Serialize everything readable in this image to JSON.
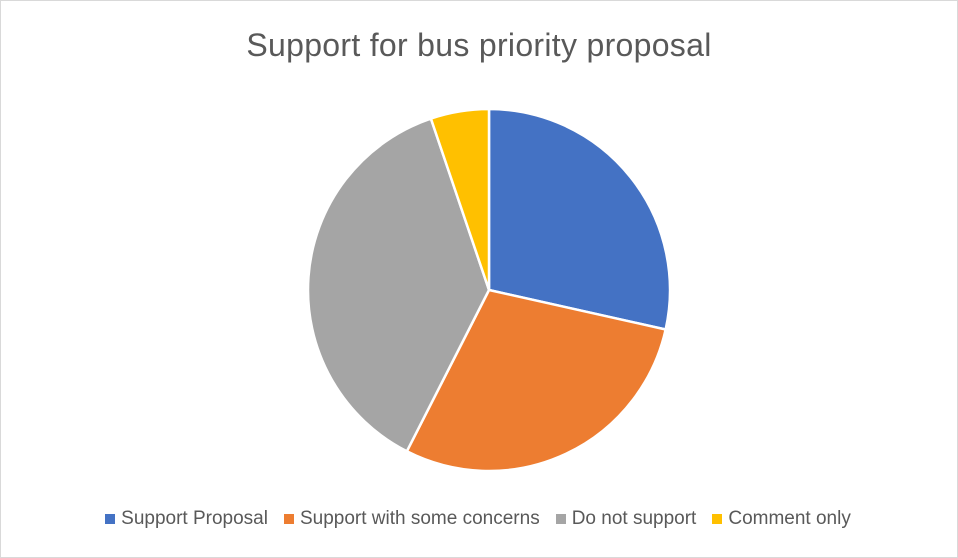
{
  "chart_data": {
    "type": "pie",
    "title": "Support for bus priority proposal",
    "categories": [
      "Support Proposal",
      "Support with some concerns",
      "Do not support",
      "Comment only"
    ],
    "values": [
      28.5,
      29.0,
      37.3,
      5.2
    ],
    "colors": [
      "#4472C4",
      "#ED7D31",
      "#A5A5A5",
      "#FFC000"
    ],
    "start_angle_deg": 0,
    "direction": "clockwise",
    "legend_position": "bottom",
    "slice_border_color": "#ffffff"
  }
}
